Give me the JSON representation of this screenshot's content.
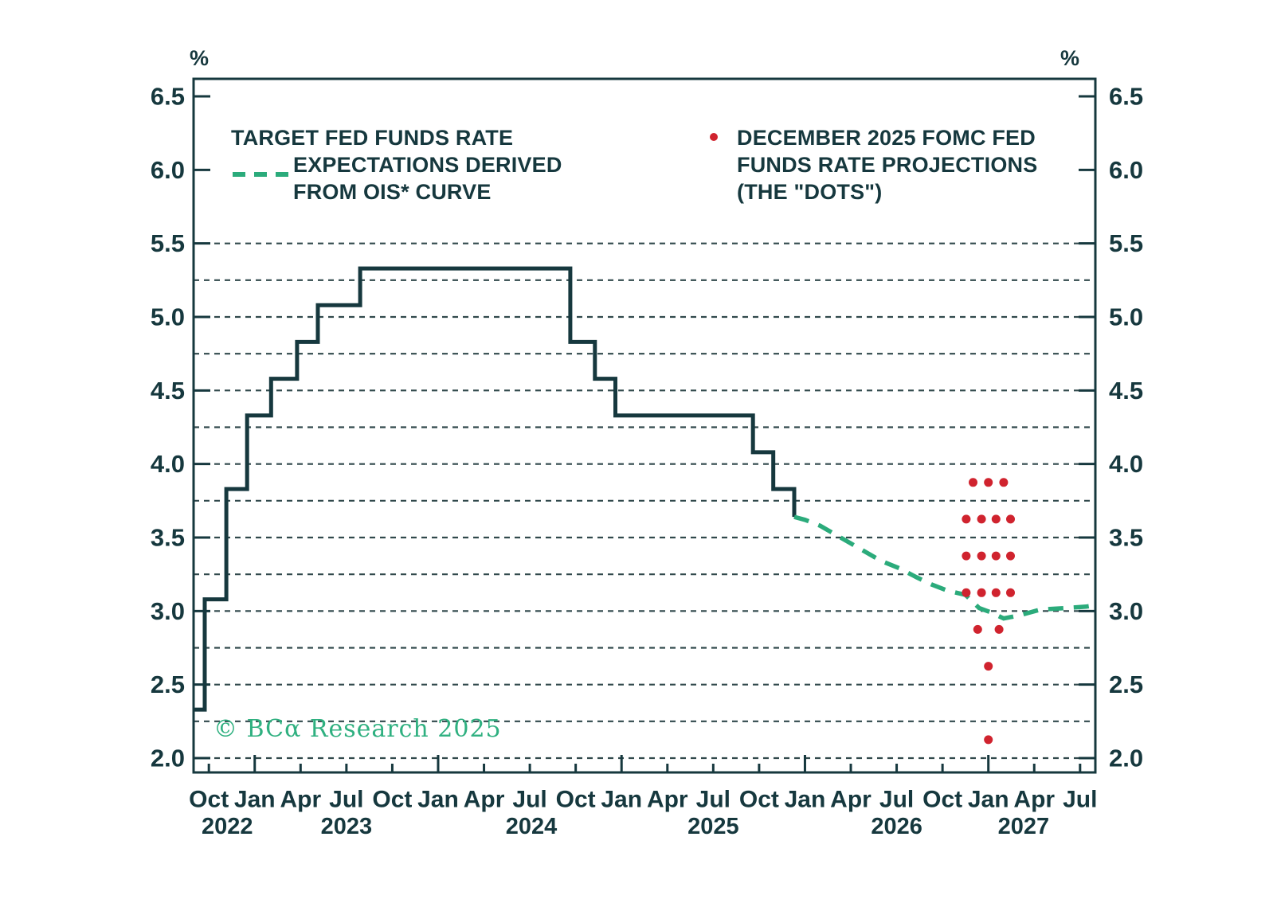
{
  "unit_left": "%",
  "unit_right": "%",
  "watermark": "© BCα Research 2025",
  "legend": {
    "ois": {
      "line1": "TARGET FED FUNDS RATE",
      "line2": "EXPECTATIONS DERIVED",
      "line3": "FROM OIS* CURVE"
    },
    "dots": {
      "line1": "DECEMBER 2025 FOMC FED",
      "line2": "FUNDS RATE PROJECTIONS",
      "line3": "(THE \"DOTS\")"
    }
  },
  "chart_data": {
    "type": "line",
    "title": "",
    "grid": "dashed horizontal every 0.25 from 2.0 to 5.5",
    "legend_position": "inside-top",
    "y_axis": {
      "unit": "%",
      "min": 2.0,
      "max": 6.5,
      "tick_labels": [
        "6.5",
        "6.0",
        "5.5",
        "5.0",
        "4.5",
        "4.0",
        "3.5",
        "3.0",
        "2.5",
        "2.0"
      ],
      "tick_values": [
        6.5,
        6.0,
        5.5,
        5.0,
        4.5,
        4.0,
        3.5,
        3.0,
        2.5,
        2.0
      ],
      "grid_min": 2.0,
      "grid_max": 5.5,
      "grid_step": 0.25
    },
    "x_axis": {
      "origin": "months elapsed since Sep 2022, axis spans Sep 2022 to Aug 2027",
      "months_total": 59,
      "ticks": [
        {
          "m": 1,
          "label": "Oct",
          "major": false
        },
        {
          "m": 4,
          "label": "Jan",
          "major": true
        },
        {
          "m": 7,
          "label": "Apr",
          "major": false
        },
        {
          "m": 10,
          "label": "Jul",
          "major": false
        },
        {
          "m": 13,
          "label": "Oct",
          "major": false
        },
        {
          "m": 16,
          "label": "Jan",
          "major": true
        },
        {
          "m": 19,
          "label": "Apr",
          "major": false
        },
        {
          "m": 22,
          "label": "Jul",
          "major": false
        },
        {
          "m": 25,
          "label": "Oct",
          "major": false
        },
        {
          "m": 28,
          "label": "Jan",
          "major": true
        },
        {
          "m": 31,
          "label": "Apr",
          "major": false
        },
        {
          "m": 34,
          "label": "Jul",
          "major": false
        },
        {
          "m": 37,
          "label": "Oct",
          "major": false
        },
        {
          "m": 40,
          "label": "Jan",
          "major": true
        },
        {
          "m": 43,
          "label": "Apr",
          "major": false
        },
        {
          "m": 46,
          "label": "Jul",
          "major": false
        },
        {
          "m": 49,
          "label": "Oct",
          "major": false
        },
        {
          "m": 52,
          "label": "Jan",
          "major": true
        },
        {
          "m": 55,
          "label": "Apr",
          "major": false
        },
        {
          "m": 58,
          "label": "Jul",
          "major": false
        }
      ],
      "years": [
        {
          "m": 2.2,
          "label": "2022"
        },
        {
          "m": 10,
          "label": "2023"
        },
        {
          "m": 22.1,
          "label": "2024"
        },
        {
          "m": 34,
          "label": "2025"
        },
        {
          "m": 46,
          "label": "2026"
        },
        {
          "m": 54.3,
          "label": "2027"
        }
      ]
    },
    "series": [
      {
        "name": "Target fed funds rate (realized step line)",
        "type": "step",
        "color": "#16383e",
        "knots": [
          [
            0.05,
            2.33
          ],
          [
            0.73,
            3.08
          ],
          [
            2.14,
            3.83
          ],
          [
            3.5,
            4.33
          ],
          [
            5.07,
            4.58
          ],
          [
            6.77,
            4.83
          ],
          [
            8.13,
            5.08
          ],
          [
            10.9,
            5.33
          ],
          [
            24.65,
            4.83
          ],
          [
            26.26,
            4.58
          ],
          [
            27.6,
            4.33
          ],
          [
            36.6,
            4.08
          ],
          [
            37.93,
            3.83
          ],
          [
            39.3,
            3.64
          ]
        ]
      },
      {
        "name": "Target fed funds rate expectations derived from OIS* curve",
        "type": "dashed-line",
        "color": "#2bab7b",
        "points": [
          [
            39.3,
            3.64
          ],
          [
            40.0,
            3.62
          ],
          [
            41.0,
            3.58
          ],
          [
            42.0,
            3.52
          ],
          [
            43.0,
            3.46
          ],
          [
            44.0,
            3.4
          ],
          [
            45.0,
            3.34
          ],
          [
            46.2,
            3.29
          ],
          [
            47.3,
            3.23
          ],
          [
            48.3,
            3.18
          ],
          [
            49.3,
            3.14
          ],
          [
            50.5,
            3.11
          ],
          [
            51.4,
            3.02
          ],
          [
            52.2,
            2.99
          ],
          [
            53.0,
            2.95
          ],
          [
            54.0,
            2.97
          ],
          [
            55.4,
            3.01
          ],
          [
            57.0,
            3.02
          ],
          [
            58.4,
            3.03
          ],
          [
            59.0,
            3.04
          ]
        ]
      },
      {
        "name": "December 2025 FOMC fed funds rate projections (the \"dots\")",
        "type": "dots",
        "color": "#d0232e",
        "radius": 5.5,
        "dots": [
          [
            51.0,
            3.875
          ],
          [
            52.0,
            3.875
          ],
          [
            53.0,
            3.875
          ],
          [
            50.55,
            3.625
          ],
          [
            51.55,
            3.625
          ],
          [
            52.5,
            3.625
          ],
          [
            53.45,
            3.625
          ],
          [
            50.55,
            3.375
          ],
          [
            51.55,
            3.375
          ],
          [
            52.5,
            3.375
          ],
          [
            53.45,
            3.375
          ],
          [
            50.55,
            3.125
          ],
          [
            51.55,
            3.125
          ],
          [
            52.5,
            3.125
          ],
          [
            53.45,
            3.125
          ],
          [
            51.3,
            2.875
          ],
          [
            52.7,
            2.875
          ],
          [
            52.0,
            2.625
          ],
          [
            52.0,
            2.125
          ]
        ]
      }
    ]
  }
}
